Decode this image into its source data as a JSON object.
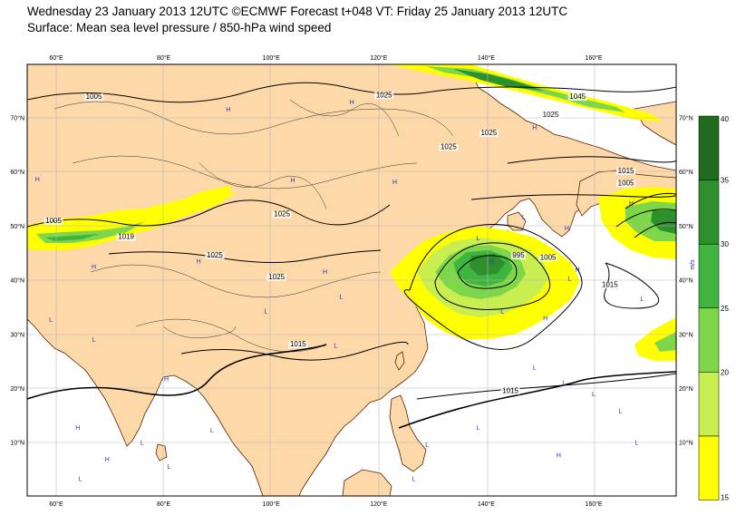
{
  "header": {
    "title": "Wednesday 23 January 2013 12UTC ©ECMWF Forecast t+048 VT: Friday 25 January 2013 12UTC",
    "subtitle": "Surface: Mean sea level pressure / 850-hPa wind speed"
  },
  "axes": {
    "lon_labels": [
      "60°E",
      "80°E",
      "100°E",
      "120°E",
      "140°E",
      "160°E"
    ],
    "lat_labels": [
      "70°N",
      "60°N",
      "50°N",
      "40°N",
      "30°N",
      "20°N",
      "10°N"
    ]
  },
  "isobar_labels": [
    {
      "text": "1005",
      "lon": 67,
      "lat": 73.5
    },
    {
      "text": "1025",
      "lon": 121,
      "lat": 73.8
    },
    {
      "text": "1045",
      "lon": 157,
      "lat": 73.5
    },
    {
      "text": "1025",
      "lon": 152,
      "lat": 70.2
    },
    {
      "text": "1025",
      "lon": 140.5,
      "lat": 66.8
    },
    {
      "text": "1025",
      "lon": 133,
      "lat": 64.2
    },
    {
      "text": "1015",
      "lon": 166,
      "lat": 59.8
    },
    {
      "text": "1005",
      "lon": 166,
      "lat": 57.5
    },
    {
      "text": "1005",
      "lon": 59.5,
      "lat": 50.6
    },
    {
      "text": "1019",
      "lon": 73,
      "lat": 47.6
    },
    {
      "text": "1025",
      "lon": 102,
      "lat": 51.8
    },
    {
      "text": "1025",
      "lon": 89.5,
      "lat": 44.2
    },
    {
      "text": "1025",
      "lon": 101,
      "lat": 40.2
    },
    {
      "text": "995",
      "lon": 146,
      "lat": 44.2
    },
    {
      "text": "1005",
      "lon": 151.5,
      "lat": 43.8
    },
    {
      "text": "1015",
      "lon": 105,
      "lat": 27.8
    },
    {
      "text": "1015",
      "lon": 144.5,
      "lat": 19.2
    },
    {
      "text": "1015",
      "lon": 163,
      "lat": 38.8
    }
  ],
  "pressure_centres": [
    {
      "text": "H",
      "lon": 56.5,
      "lat": 58.3
    },
    {
      "text": "H",
      "lon": 92,
      "lat": 71.2
    },
    {
      "text": "H",
      "lon": 115,
      "lat": 72.5
    },
    {
      "text": "H",
      "lon": 67,
      "lat": 42.1
    },
    {
      "text": "H",
      "lon": 104,
      "lat": 58.1
    },
    {
      "text": "H",
      "lon": 149,
      "lat": 67.8
    },
    {
      "text": "H",
      "lon": 86.5,
      "lat": 43.1
    },
    {
      "text": "H",
      "lon": 110,
      "lat": 41.2
    },
    {
      "text": "H",
      "lon": 123,
      "lat": 57.8
    },
    {
      "text": "L",
      "lon": 59,
      "lat": 32.3
    },
    {
      "text": "L",
      "lon": 67,
      "lat": 28.6
    },
    {
      "text": "L",
      "lon": 113,
      "lat": 36.6
    },
    {
      "text": "L",
      "lon": 99,
      "lat": 33.9
    },
    {
      "text": "L",
      "lon": 112,
      "lat": 27.5
    },
    {
      "text": "L",
      "lon": 149,
      "lat": 23.4
    },
    {
      "text": "L",
      "lon": 154.5,
      "lat": 20.7
    },
    {
      "text": "L",
      "lon": 169,
      "lat": 36.2
    },
    {
      "text": "L",
      "lon": 143,
      "lat": 33.9
    },
    {
      "text": "L",
      "lon": 147,
      "lat": 51.3
    },
    {
      "text": "H",
      "lon": 155,
      "lat": 49.2
    },
    {
      "text": "H",
      "lon": 167,
      "lat": 53.8
    },
    {
      "text": "H",
      "lon": 157,
      "lat": 41.6
    },
    {
      "text": "L",
      "lon": 155.5,
      "lat": 39.9
    },
    {
      "text": "H",
      "lon": 151,
      "lat": 32.6
    },
    {
      "text": "H",
      "lon": 141,
      "lat": 43.1
    },
    {
      "text": "L",
      "lon": 138.5,
      "lat": 47.4
    },
    {
      "text": "H",
      "lon": 80.5,
      "lat": 21.3
    },
    {
      "text": "H",
      "lon": 64,
      "lat": 12.4
    },
    {
      "text": "H",
      "lon": 69.5,
      "lat": 6.5
    },
    {
      "text": "L",
      "lon": 64.5,
      "lat": 2.9
    },
    {
      "text": "L",
      "lon": 76,
      "lat": 9.6
    },
    {
      "text": "L",
      "lon": 81,
      "lat": 5.2
    },
    {
      "text": "L",
      "lon": 89,
      "lat": 11.9
    },
    {
      "text": "H",
      "lon": 153.5,
      "lat": 7.3
    },
    {
      "text": "L",
      "lon": 126.5,
      "lat": 2.9
    },
    {
      "text": "L",
      "lon": 129,
      "lat": 9.2
    },
    {
      "text": "L",
      "lon": 138.5,
      "lat": 12.4
    },
    {
      "text": "L",
      "lon": 160,
      "lat": 18.6
    },
    {
      "text": "L",
      "lon": 165,
      "lat": 15.4
    },
    {
      "text": "L",
      "lon": 168,
      "lat": 9.6
    }
  ],
  "colorbar": {
    "labels": [
      "40",
      "35",
      "30",
      "25",
      "20",
      "15"
    ],
    "unit": "m/s",
    "colors": [
      "#1f6b1f",
      "#2d902d",
      "#3fb43f",
      "#7ed64a",
      "#c8ee52",
      "#ffff00"
    ]
  },
  "colors": {
    "land": "#fdd8a8",
    "sea": "#ffffff",
    "isobar": "#000000",
    "coast": "#552200",
    "grid": "#b8b8b8"
  }
}
